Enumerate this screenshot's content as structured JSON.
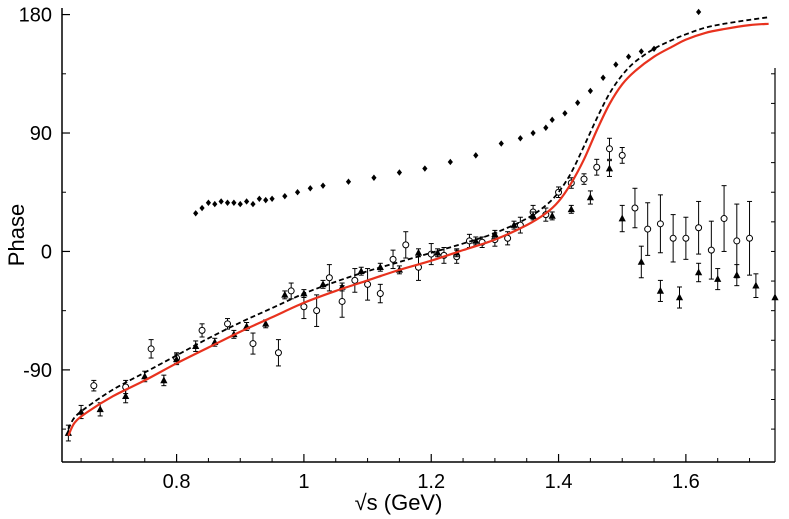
{
  "chart_data": {
    "type": "scatter",
    "xlabel": "√s (GeV)",
    "ylabel": "Phase",
    "xlim": [
      0.62,
      1.74
    ],
    "ylim": [
      -160,
      185
    ],
    "x_ticks": [
      0.8,
      1.0,
      1.2,
      1.4,
      1.6
    ],
    "x_tick_labels": [
      "0.8",
      "1",
      "1.2",
      "1.4",
      "1.6"
    ],
    "y_ticks": [
      -90,
      0,
      90,
      180
    ],
    "y_tick_labels": [
      "-90",
      "0",
      "90",
      "180"
    ],
    "series": [
      {
        "name": "model-solid",
        "kind": "line",
        "color": "#e8321e",
        "style": "solid",
        "x": [
          0.63,
          0.64,
          0.66,
          0.7,
          0.75,
          0.8,
          0.85,
          0.9,
          0.95,
          1.0,
          1.05,
          1.1,
          1.15,
          1.2,
          1.25,
          1.3,
          1.35,
          1.38,
          1.4,
          1.42,
          1.44,
          1.46,
          1.48,
          1.5,
          1.52,
          1.55,
          1.58,
          1.6,
          1.63,
          1.66,
          1.7,
          1.73
        ],
        "y": [
          -140,
          -130,
          -122,
          -110,
          -98,
          -85,
          -73,
          -61,
          -50,
          -39,
          -30,
          -22,
          -14,
          -7,
          1,
          9,
          20,
          29,
          38,
          52,
          70,
          92,
          112,
          127,
          137,
          148,
          156,
          161,
          166,
          169,
          172,
          173
        ]
      },
      {
        "name": "model-dashed",
        "kind": "line",
        "color": "#000000",
        "style": "dashed",
        "x": [
          0.63,
          0.64,
          0.66,
          0.7,
          0.75,
          0.8,
          0.85,
          0.9,
          0.95,
          1.0,
          1.05,
          1.1,
          1.15,
          1.2,
          1.25,
          1.3,
          1.35,
          1.38,
          1.4,
          1.42,
          1.44,
          1.46,
          1.48,
          1.5,
          1.52,
          1.55,
          1.58,
          1.6,
          1.63,
          1.66,
          1.7,
          1.73
        ],
        "y": [
          -135,
          -126,
          -118,
          -105,
          -92,
          -79,
          -66,
          -54,
          -43,
          -32,
          -23,
          -15,
          -8,
          -1,
          6,
          14,
          25,
          35,
          45,
          60,
          80,
          101,
          120,
          134,
          144,
          154,
          161,
          165,
          170,
          173,
          176,
          178
        ]
      },
      {
        "name": "filled-diamonds",
        "kind": "markers",
        "marker": "diamond",
        "color": "#000000",
        "x": [
          0.83,
          0.84,
          0.85,
          0.86,
          0.87,
          0.88,
          0.89,
          0.9,
          0.91,
          0.92,
          0.93,
          0.94,
          0.95,
          0.97,
          0.99,
          1.01,
          1.03,
          1.07,
          1.11,
          1.15,
          1.19,
          1.23,
          1.27,
          1.31,
          1.34,
          1.36,
          1.38,
          1.39,
          1.41,
          1.43,
          1.45,
          1.47,
          1.49,
          1.51,
          1.53,
          1.55,
          1.62
        ],
        "y": [
          29,
          33,
          37,
          36,
          38,
          37,
          37,
          36,
          38,
          36,
          40,
          39,
          40,
          42,
          45,
          48,
          50,
          53,
          56,
          60,
          63,
          68,
          73,
          82,
          86,
          90,
          94,
          100,
          105,
          113,
          122,
          132,
          142,
          148,
          152,
          154,
          182
        ]
      },
      {
        "name": "open-circles",
        "kind": "markers",
        "marker": "circle-open",
        "color": "#000000",
        "x": [
          0.67,
          0.72,
          0.76,
          0.8,
          0.84,
          0.88,
          0.92,
          0.96,
          0.98,
          1.0,
          1.02,
          1.04,
          1.06,
          1.08,
          1.1,
          1.12,
          1.14,
          1.16,
          1.18,
          1.2,
          1.22,
          1.24,
          1.26,
          1.28,
          1.3,
          1.32,
          1.34,
          1.36,
          1.38,
          1.4,
          1.42,
          1.44,
          1.46,
          1.48,
          1.5,
          1.52,
          1.54,
          1.56,
          1.58,
          1.6,
          1.62,
          1.64,
          1.66,
          1.68,
          1.7
        ],
        "y": [
          -102,
          -103,
          -74,
          -81,
          -60,
          -55,
          -70,
          -77,
          -30,
          -42,
          -45,
          -20,
          -38,
          -22,
          -25,
          -32,
          -6,
          5,
          -12,
          -2,
          -3,
          -4,
          8,
          7,
          9,
          10,
          20,
          30,
          28,
          45,
          52,
          55,
          64,
          78,
          73,
          33,
          17,
          21,
          10,
          10,
          18,
          1,
          25,
          8,
          10
        ],
        "err": [
          4,
          5,
          7,
          4,
          5,
          4,
          8,
          10,
          6,
          9,
          12,
          10,
          12,
          9,
          12,
          7,
          7,
          10,
          10,
          8,
          6,
          5,
          5,
          4,
          5,
          5,
          6,
          5,
          5,
          4,
          4,
          4,
          6,
          8,
          6,
          15,
          20,
          22,
          18,
          16,
          20,
          22,
          25,
          28,
          28
        ]
      },
      {
        "name": "filled-triangles",
        "kind": "markers",
        "marker": "triangle",
        "color": "#000000",
        "x": [
          0.63,
          0.65,
          0.68,
          0.72,
          0.75,
          0.78,
          0.8,
          0.83,
          0.86,
          0.89,
          0.91,
          0.94,
          0.97,
          1.0,
          1.03,
          1.06,
          1.09,
          1.12,
          1.15,
          1.18,
          1.21,
          1.24,
          1.27,
          1.3,
          1.33,
          1.36,
          1.39,
          1.42,
          1.45,
          1.48,
          1.5,
          1.53,
          1.56,
          1.59,
          1.62,
          1.65,
          1.68,
          1.71,
          1.74
        ],
        "y": [
          -138,
          -122,
          -120,
          -110,
          -95,
          -98,
          -82,
          -72,
          -69,
          -63,
          -57,
          -55,
          -33,
          -32,
          -25,
          -27,
          -15,
          -12,
          -14,
          -1,
          -1,
          -1,
          8,
          13,
          20,
          27,
          27,
          32,
          41,
          63,
          25,
          -8,
          -30,
          -35,
          -16,
          -21,
          -18,
          -26,
          -35
        ],
        "err": [
          6,
          5,
          5,
          5,
          4,
          4,
          4,
          4,
          3,
          3,
          3,
          3,
          3,
          3,
          3,
          3,
          3,
          3,
          3,
          3,
          3,
          3,
          3,
          3,
          3,
          3,
          3,
          3,
          5,
          6,
          10,
          12,
          8,
          8,
          7,
          8,
          8,
          9,
          0
        ]
      }
    ]
  }
}
